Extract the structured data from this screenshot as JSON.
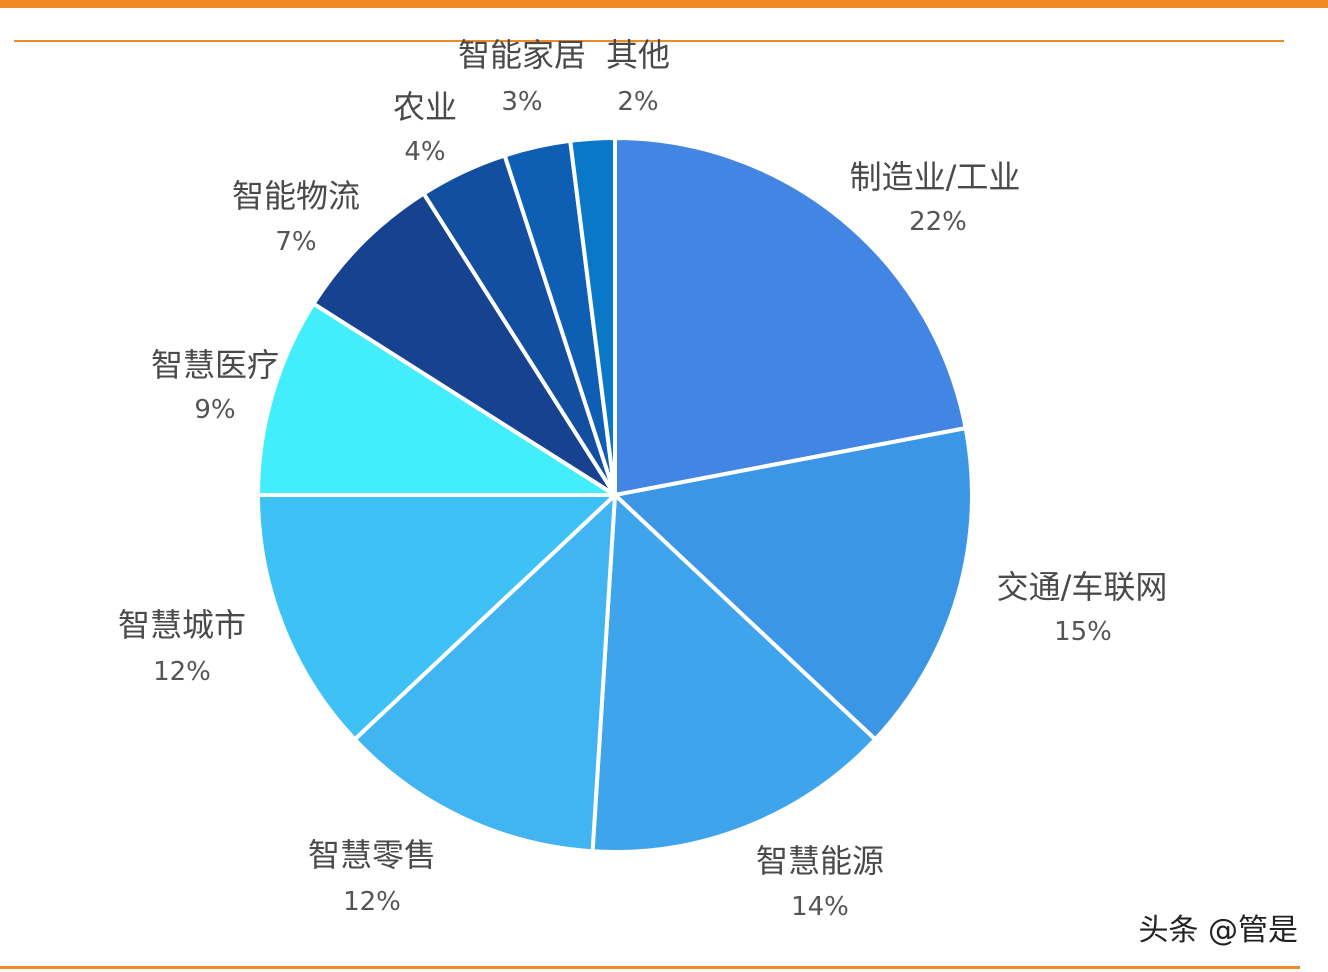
{
  "page": {
    "watermark": "头条 @管是"
  },
  "colors": {
    "accent_bar": "#f08a24"
  },
  "chart_data": {
    "type": "pie",
    "title": "",
    "start_angle_deg": 0,
    "direction": "clockwise",
    "slices": [
      {
        "label": "制造业/工业",
        "value": 22,
        "value_label": "22%",
        "color": "#4285e2"
      },
      {
        "label": "交通/车联网",
        "value": 15,
        "value_label": "15%",
        "color": "#3c96e6"
      },
      {
        "label": "智慧能源",
        "value": 14,
        "value_label": "14%",
        "color": "#3ea4ec"
      },
      {
        "label": "智慧零售",
        "value": 12,
        "value_label": "12%",
        "color": "#41b4f2"
      },
      {
        "label": "智慧城市",
        "value": 12,
        "value_label": "12%",
        "color": "#3ec2f6"
      },
      {
        "label": "智慧医疗",
        "value": 9,
        "value_label": "9%",
        "color": "#42eefc"
      },
      {
        "label": "智能物流",
        "value": 7,
        "value_label": "7%",
        "color": "#16428f"
      },
      {
        "label": "农业",
        "value": 4,
        "value_label": "4%",
        "color": "#124fa0"
      },
      {
        "label": "智能家居",
        "value": 3,
        "value_label": "3%",
        "color": "#0e5fb3"
      },
      {
        "label": "其他",
        "value": 2,
        "value_label": "2%",
        "color": "#0b78c7"
      }
    ]
  }
}
